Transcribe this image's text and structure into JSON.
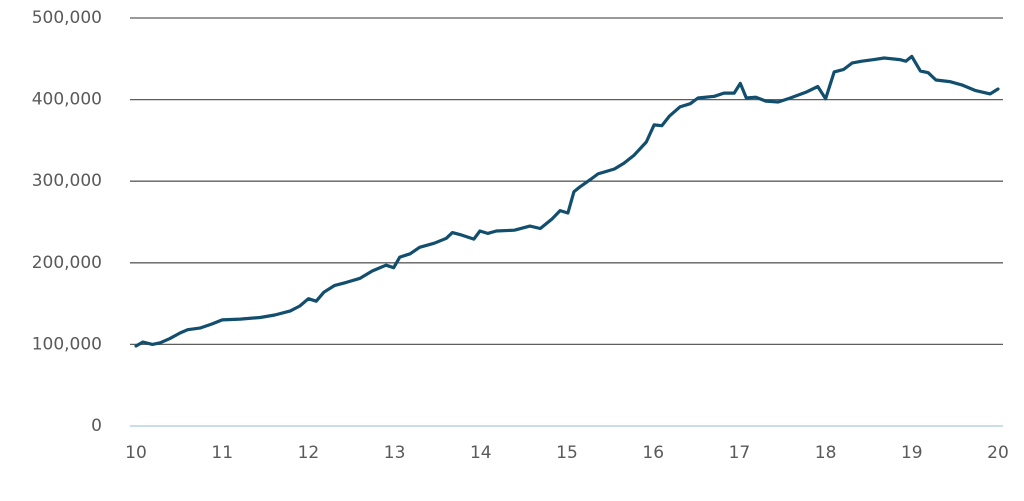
{
  "chart_data": {
    "type": "line",
    "x": [
      10.0,
      10.08,
      10.19,
      10.28,
      10.39,
      10.51,
      10.6,
      10.74,
      10.88,
      11.0,
      11.21,
      11.44,
      11.61,
      11.79,
      11.9,
      12.0,
      12.09,
      12.18,
      12.3,
      12.44,
      12.6,
      12.74,
      12.9,
      12.99,
      13.06,
      13.18,
      13.29,
      13.46,
      13.6,
      13.67,
      13.78,
      13.92,
      13.99,
      14.08,
      14.18,
      14.39,
      14.57,
      14.69,
      14.83,
      14.92,
      15.01,
      15.08,
      15.15,
      15.27,
      15.36,
      15.55,
      15.66,
      15.78,
      15.92,
      16.01,
      16.1,
      16.19,
      16.31,
      16.43,
      16.52,
      16.71,
      16.82,
      16.94,
      17.01,
      17.08,
      17.19,
      17.31,
      17.45,
      17.59,
      17.77,
      17.91,
      18.0,
      18.1,
      18.21,
      18.31,
      18.42,
      18.56,
      18.68,
      18.86,
      18.93,
      19.0,
      19.1,
      19.19,
      19.28,
      19.44,
      19.58,
      19.74,
      19.91,
      20.0
    ],
    "series": [
      {
        "color": "#124e6d",
        "values": [
          98000,
          103000,
          100000,
          102000,
          107000,
          114000,
          118000,
          120000,
          125000,
          130000,
          131000,
          133000,
          136000,
          141000,
          147000,
          156000,
          153000,
          164000,
          172000,
          176000,
          181000,
          190000,
          197000,
          194000,
          207000,
          211000,
          219000,
          224000,
          230000,
          237000,
          234000,
          229000,
          239000,
          236000,
          239000,
          240000,
          245000,
          242000,
          254000,
          264000,
          261000,
          287000,
          293000,
          302000,
          309000,
          315000,
          322000,
          332000,
          348000,
          369000,
          368000,
          380000,
          391000,
          395000,
          402000,
          404000,
          408000,
          408000,
          420000,
          402000,
          403000,
          398000,
          397000,
          402000,
          409000,
          416000,
          401000,
          434000,
          437000,
          445000,
          447000,
          449000,
          451000,
          449000,
          447000,
          453000,
          435000,
          433000,
          424000,
          422000,
          418000,
          411000,
          407000,
          413000
        ]
      }
    ],
    "xlim": [
      10,
      20
    ],
    "xticks": [
      10,
      11,
      12,
      13,
      14,
      15,
      16,
      17,
      18,
      19,
      20
    ],
    "ylim": [
      0,
      500000
    ],
    "yticks": [
      0,
      {
        "value": 100000,
        "label": "100,000"
      },
      {
        "value": 200000,
        "label": "200,000"
      },
      {
        "value": 300000,
        "label": "300,000"
      },
      {
        "value": 400000,
        "label": "400,000"
      },
      {
        "value": 500000,
        "label": "500,000"
      }
    ],
    "grid": true
  }
}
